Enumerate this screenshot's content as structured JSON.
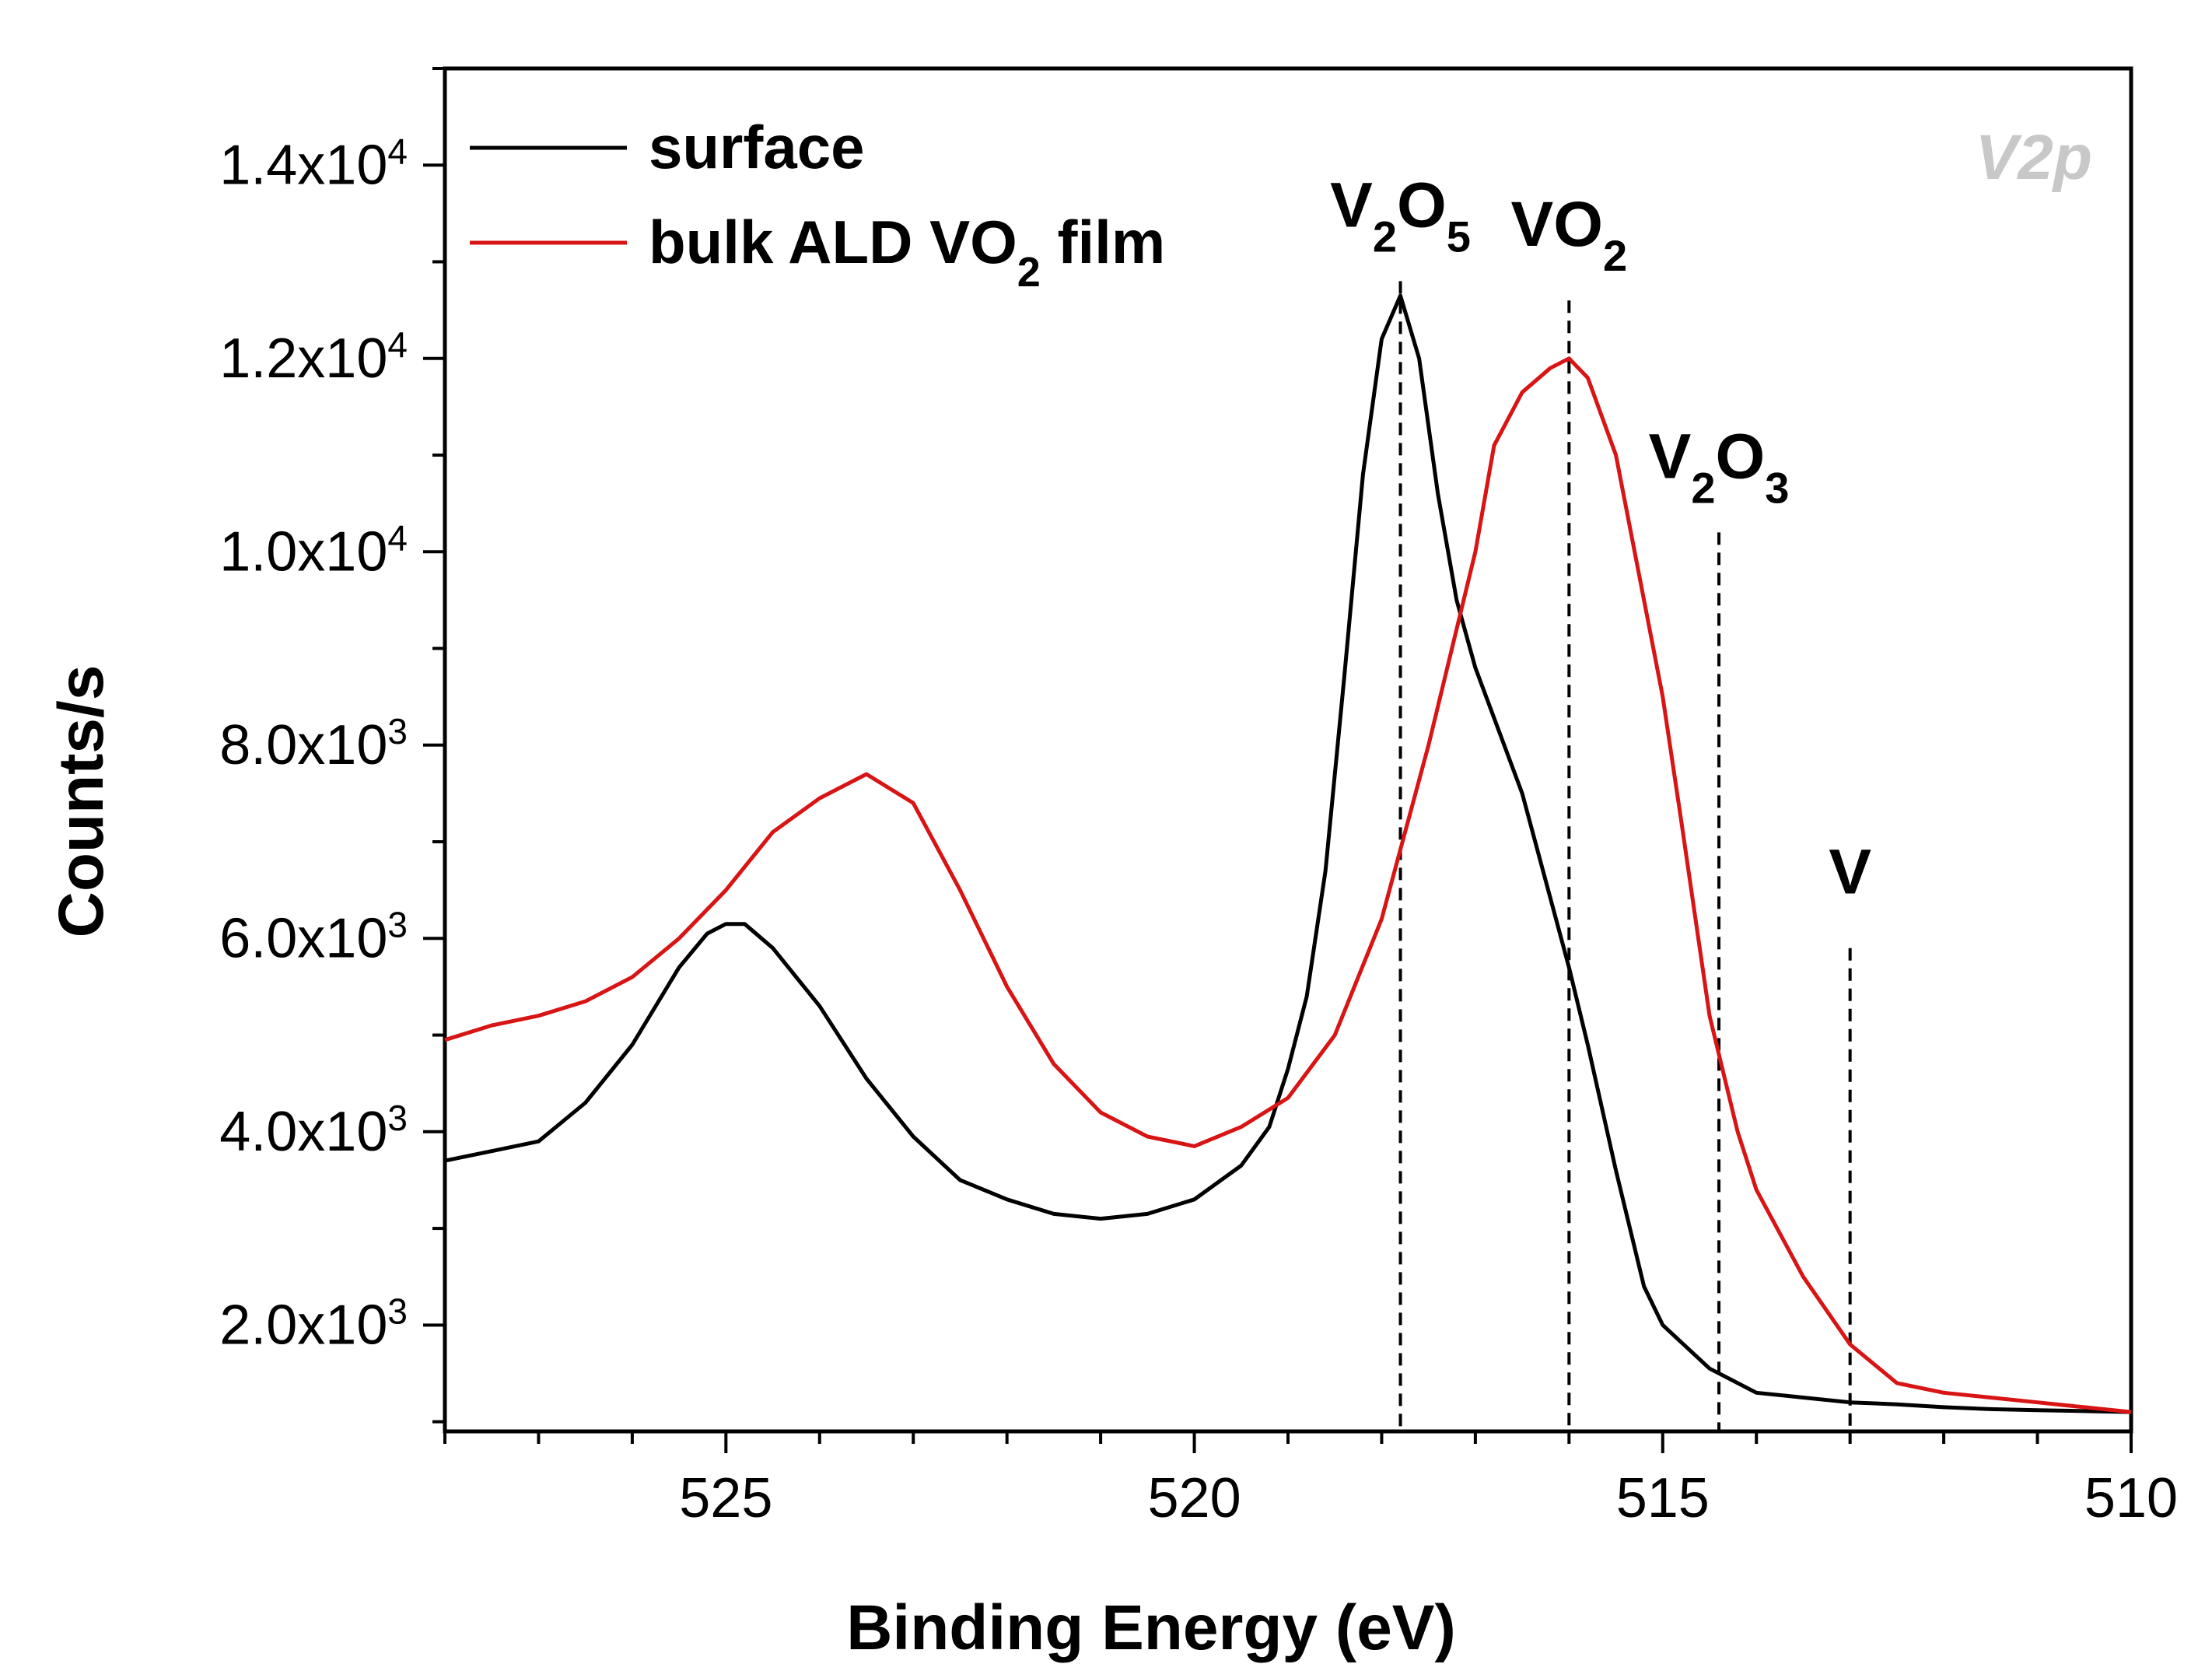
{
  "chart_data": {
    "type": "line",
    "panel_label": "V2p",
    "xlabel": "Binding Energy (eV)",
    "ylabel": "Counts/s",
    "xlim": [
      528,
      510
    ],
    "ylim": [
      900,
      15000
    ],
    "x_ticks": [
      525,
      520,
      515,
      510
    ],
    "y_ticks": [
      {
        "value": 2000,
        "mantissa": "2.0x10",
        "exp": "3"
      },
      {
        "value": 4000,
        "mantissa": "4.0x10",
        "exp": "3"
      },
      {
        "value": 6000,
        "mantissa": "6.0x10",
        "exp": "3"
      },
      {
        "value": 8000,
        "mantissa": "8.0x10",
        "exp": "3"
      },
      {
        "value": 10000,
        "mantissa": "1.0x10",
        "exp": "4"
      },
      {
        "value": 12000,
        "mantissa": "1.2x10",
        "exp": "4"
      },
      {
        "value": 14000,
        "mantissa": "1.4x10",
        "exp": "4"
      }
    ],
    "legend_position": "top-left",
    "series": [
      {
        "name": "surface",
        "color": "#000000",
        "x": [
          528,
          527.5,
          527,
          526.5,
          526,
          525.5,
          525.2,
          525,
          524.8,
          524.5,
          524,
          523.5,
          523,
          522.5,
          522,
          521.5,
          521,
          520.5,
          520,
          519.5,
          519.2,
          519,
          518.8,
          518.6,
          518.4,
          518.2,
          518,
          517.8,
          517.6,
          517.4,
          517.2,
          517,
          516.5,
          516,
          515.8,
          515.5,
          515.2,
          515,
          514.5,
          514,
          513.5,
          513,
          512.5,
          512,
          511.5,
          511,
          510.5,
          510
        ],
        "y": [
          3700,
          3800,
          3900,
          4300,
          4900,
          5700,
          6050,
          6150,
          6150,
          5900,
          5300,
          4550,
          3950,
          3500,
          3300,
          3150,
          3100,
          3150,
          3300,
          3650,
          4050,
          4650,
          5400,
          6700,
          8700,
          10800,
          12200,
          12650,
          12000,
          10600,
          9500,
          8800,
          7500,
          5700,
          4900,
          3600,
          2400,
          2000,
          1550,
          1300,
          1250,
          1200,
          1180,
          1150,
          1130,
          1120,
          1110,
          1100
        ]
      },
      {
        "name": "bulk ALD VO2 film",
        "legend_text": "bulk ALD VO",
        "legend_sub": "2",
        "legend_suffix": " film",
        "color": "#d81414",
        "x": [
          528,
          527.5,
          527,
          526.5,
          526,
          525.5,
          525,
          524.5,
          524,
          523.5,
          523,
          522.5,
          522,
          521.5,
          521,
          520.5,
          520,
          519.5,
          519,
          518.5,
          518,
          517.5,
          517,
          516.8,
          516.5,
          516.2,
          516,
          515.8,
          515.5,
          515.2,
          515,
          514.8,
          514.5,
          514.2,
          514,
          513.5,
          513,
          512.5,
          512,
          511.5,
          511,
          510.5,
          510
        ],
        "y": [
          4950,
          5100,
          5200,
          5350,
          5600,
          6000,
          6500,
          7100,
          7450,
          7700,
          7400,
          6500,
          5500,
          4700,
          4200,
          3950,
          3850,
          4050,
          4350,
          5000,
          6200,
          8000,
          10000,
          11100,
          11650,
          11900,
          12000,
          11800,
          11000,
          9500,
          8500,
          7200,
          5200,
          4000,
          3400,
          2500,
          1800,
          1400,
          1300,
          1250,
          1200,
          1150,
          1100
        ]
      }
    ],
    "reference_lines": [
      {
        "label": "V2O5",
        "base": "V",
        "parts": [
          {
            "sub": "2",
            "text": "O"
          },
          {
            "sub": "5",
            "text": ""
          }
        ],
        "x": 517.8,
        "y_top": 12800
      },
      {
        "label": "VO2",
        "base": "VO",
        "parts": [
          {
            "sub": "2",
            "text": ""
          }
        ],
        "x": 516.0,
        "y_top": 12600
      },
      {
        "label": "V2O3",
        "base": "V",
        "parts": [
          {
            "sub": "2",
            "text": "O"
          },
          {
            "sub": "3",
            "text": ""
          }
        ],
        "x": 514.4,
        "y_top": 10200
      },
      {
        "label": "V",
        "base": "V",
        "parts": [],
        "x": 513.0,
        "y_top": 5900
      }
    ]
  }
}
